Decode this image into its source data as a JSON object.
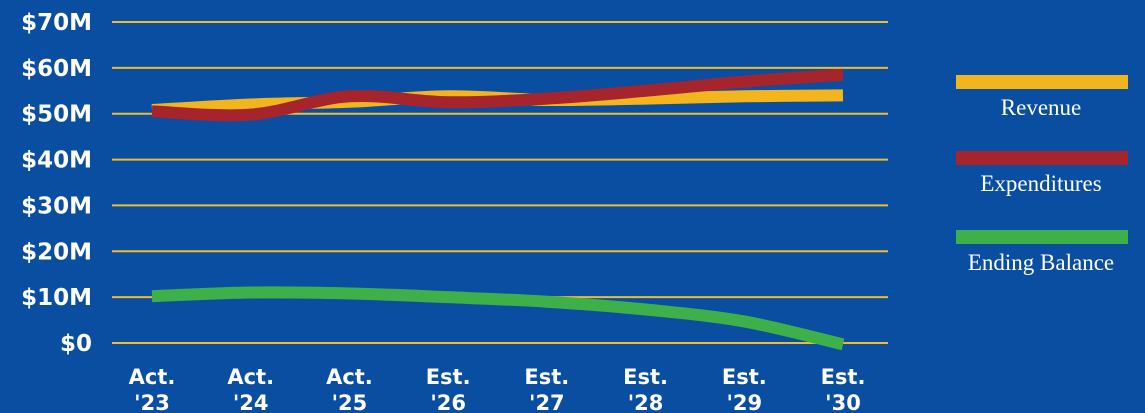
{
  "chart_data": {
    "type": "line",
    "categories": [
      [
        "Act.",
        "'23"
      ],
      [
        "Act.",
        "'24"
      ],
      [
        "Act.",
        "'25"
      ],
      [
        "Est.",
        "'26"
      ],
      [
        "Est.",
        "'27"
      ],
      [
        "Est.",
        "'28"
      ],
      [
        "Est.",
        "'29"
      ],
      [
        "Est.",
        "'30"
      ]
    ],
    "y_ticks": [
      {
        "value": 0,
        "label": "$0"
      },
      {
        "value": 10,
        "label": "$10M"
      },
      {
        "value": 20,
        "label": "$20M"
      },
      {
        "value": 30,
        "label": "$30M"
      },
      {
        "value": 40,
        "label": "$40M"
      },
      {
        "value": 50,
        "label": "$50M"
      },
      {
        "value": 60,
        "label": "$60M"
      },
      {
        "value": 70,
        "label": "$70M"
      }
    ],
    "ylim": [
      0,
      70
    ],
    "grid": true,
    "legend_position": "right",
    "colors": {
      "background": "#0a4ea2",
      "grid": "#f2bb2a",
      "text": "#ffffff"
    },
    "series": [
      {
        "name": "Revenue",
        "color": "#f2b51d",
        "values": [
          50.8,
          52.0,
          52.6,
          53.8,
          53.0,
          53.3,
          53.8,
          54.0
        ]
      },
      {
        "name": "Expenditures",
        "color": "#a6242c",
        "values": [
          50.5,
          49.8,
          53.8,
          52.5,
          53.3,
          55.0,
          57.0,
          58.5
        ]
      },
      {
        "name": "Ending Balance",
        "color": "#3db04a",
        "values": [
          10.2,
          11.0,
          10.8,
          10.0,
          9.0,
          7.3,
          4.7,
          -0.3
        ]
      }
    ]
  }
}
